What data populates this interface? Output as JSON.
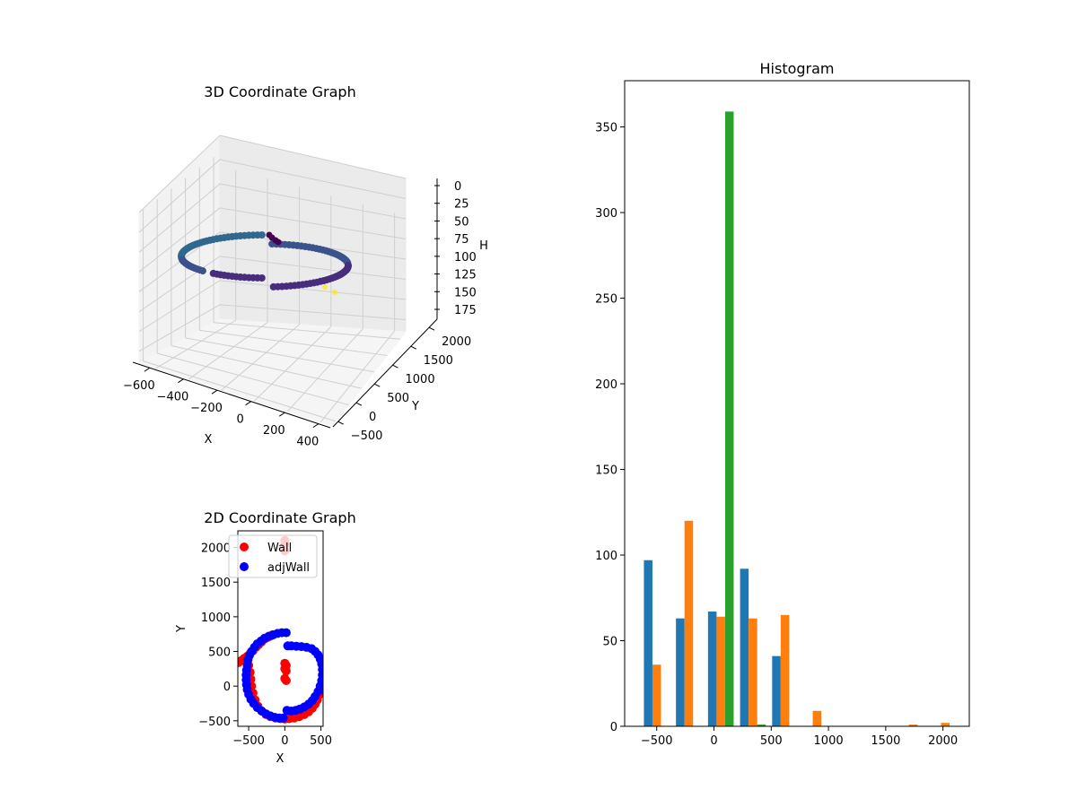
{
  "chart_data": [
    {
      "type": "scatter3d",
      "title": "3D Coordinate Graph",
      "xlabel": "X",
      "ylabel": "Y",
      "zlabel": "H",
      "x_ticks": [
        -600,
        -400,
        -200,
        0,
        200,
        400
      ],
      "y_ticks": [
        -500,
        0,
        500,
        1000,
        1500,
        2000
      ],
      "z_ticks": [
        0,
        25,
        50,
        75,
        100,
        125,
        150,
        175
      ],
      "z_inverted": true,
      "colormap": "viridis",
      "grid": true,
      "point_colors": [
        "#3b528b",
        "#31688e",
        "#472d7b",
        "#440154",
        "#fde725"
      ]
    },
    {
      "type": "scatter",
      "title": "2D Coordinate Graph",
      "xlabel": "X",
      "ylabel": "Y",
      "xlim": [
        -650,
        530
      ],
      "ylim": [
        -580,
        2240
      ],
      "x_ticks": [
        -500,
        0,
        500
      ],
      "y_ticks": [
        -500,
        0,
        500,
        1000,
        1500,
        2000
      ],
      "legend_position": "top",
      "series": [
        {
          "name": "Wall",
          "color": "#ff0000",
          "points": [
            [
              -640,
              340
            ],
            [
              -600,
              370
            ],
            [
              -560,
              400
            ],
            [
              -520,
              430
            ],
            [
              -480,
              470
            ],
            [
              -440,
              510
            ],
            [
              -400,
              560
            ],
            [
              -360,
              600
            ],
            [
              -320,
              640
            ],
            [
              -280,
              680
            ],
            [
              -240,
              700
            ],
            [
              -200,
              720
            ],
            [
              -170,
              740
            ],
            [
              -500,
              300
            ],
            [
              -480,
              200
            ],
            [
              -470,
              100
            ],
            [
              -460,
              0
            ],
            [
              -440,
              -100
            ],
            [
              -410,
              -200
            ],
            [
              -370,
              -290
            ],
            [
              -320,
              -360
            ],
            [
              -260,
              -410
            ],
            [
              -200,
              -440
            ],
            [
              -130,
              -460
            ],
            [
              -60,
              -470
            ],
            [
              0,
              -475
            ],
            [
              60,
              -470
            ],
            [
              130,
              -460
            ],
            [
              200,
              -440
            ],
            [
              270,
              -410
            ],
            [
              330,
              -370
            ],
            [
              380,
              -320
            ],
            [
              420,
              -260
            ],
            [
              450,
              -200
            ],
            [
              470,
              -130
            ],
            [
              480,
              -60
            ],
            [
              490,
              0
            ],
            [
              0,
              330
            ],
            [
              20,
              300
            ],
            [
              0,
              250
            ],
            [
              20,
              220
            ],
            [
              0,
              110
            ],
            [
              20,
              80
            ],
            [
              0,
              2100
            ],
            [
              0,
              2050
            ],
            [
              -20,
              2000
            ],
            [
              0,
              1950
            ]
          ]
        },
        {
          "name": "adjWall",
          "color": "#0000ff",
          "points": [
            [
              20,
              770
            ],
            [
              -40,
              770
            ],
            [
              -100,
              760
            ],
            [
              -160,
              740
            ],
            [
              -220,
              720
            ],
            [
              -280,
              690
            ],
            [
              -330,
              650
            ],
            [
              -380,
              610
            ],
            [
              -420,
              560
            ],
            [
              -460,
              500
            ],
            [
              -490,
              440
            ],
            [
              -510,
              380
            ],
            [
              -520,
              300
            ],
            [
              -530,
              230
            ],
            [
              -535,
              160
            ],
            [
              -535,
              90
            ],
            [
              -530,
              20
            ],
            [
              -520,
              -50
            ],
            [
              -500,
              -120
            ],
            [
              -470,
              -190
            ],
            [
              -430,
              -250
            ],
            [
              -380,
              -310
            ],
            [
              -320,
              -360
            ],
            [
              -260,
              -400
            ],
            [
              -200,
              -430
            ],
            [
              -140,
              -450
            ],
            [
              -80,
              -460
            ],
            [
              -20,
              -460
            ],
            [
              30,
              -350
            ],
            [
              90,
              -360
            ],
            [
              150,
              -350
            ],
            [
              210,
              -330
            ],
            [
              270,
              -300
            ],
            [
              330,
              -260
            ],
            [
              380,
              -210
            ],
            [
              420,
              -150
            ],
            [
              460,
              -80
            ],
            [
              490,
              0
            ],
            [
              510,
              80
            ],
            [
              520,
              160
            ],
            [
              520,
              240
            ],
            [
              510,
              320
            ],
            [
              490,
              390
            ],
            [
              460,
              450
            ],
            [
              420,
              500
            ],
            [
              370,
              540
            ],
            [
              300,
              560
            ],
            [
              230,
              570
            ],
            [
              160,
              575
            ],
            [
              90,
              580
            ],
            [
              40,
              580
            ]
          ]
        }
      ]
    },
    {
      "type": "bar",
      "title": "Histogram",
      "xlim": [
        -780,
        2230
      ],
      "ylim": [
        0,
        377
      ],
      "x_ticks": [
        -500,
        0,
        500,
        1000,
        1500,
        2000
      ],
      "y_ticks": [
        0,
        50,
        100,
        150,
        200,
        250,
        300,
        350
      ],
      "bin_edges": [
        -640,
        -360,
        -80,
        200,
        480,
        760,
        1040,
        1320,
        1600,
        1880,
        2160
      ],
      "series": [
        {
          "color": "#1f77b4",
          "values": [
            97,
            63,
            67,
            92,
            41,
            0,
            0,
            0,
            0,
            0
          ]
        },
        {
          "color": "#ff7f0e",
          "values": [
            36,
            120,
            64,
            63,
            65,
            9,
            0,
            0,
            1,
            2
          ]
        },
        {
          "color": "#2ca02c",
          "values": [
            0,
            0,
            359,
            1,
            0,
            0,
            0,
            0,
            0,
            0
          ]
        }
      ]
    }
  ]
}
